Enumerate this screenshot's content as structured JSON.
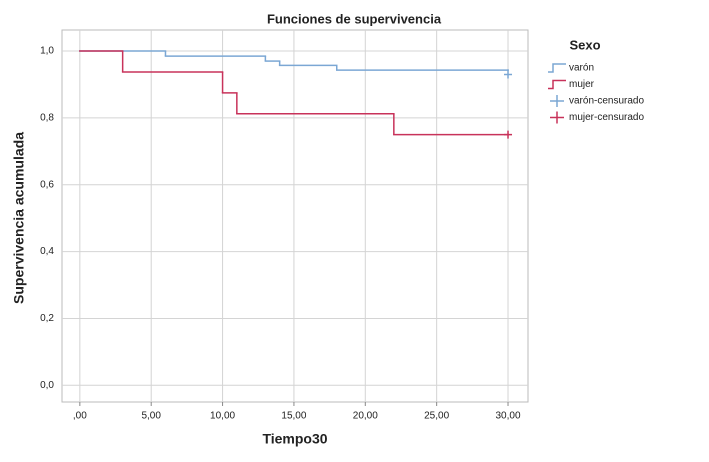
{
  "chart_data": {
    "type": "step",
    "title": "Funciones de supervivencia",
    "x_label": "Tiempo30",
    "y_label": "Supervivencia acumulada",
    "legend_title": "Sexo",
    "legend": "right",
    "grid": true,
    "xlim": [
      -1.25,
      31.4
    ],
    "ylim": [
      -0.05,
      1.063
    ],
    "xticks": [
      {
        "value": 0,
        "label": ",00"
      },
      {
        "value": 5,
        "label": "5,00"
      },
      {
        "value": 10,
        "label": "10,00"
      },
      {
        "value": 15,
        "label": "15,00"
      },
      {
        "value": 20,
        "label": "20,00"
      },
      {
        "value": 25,
        "label": "25,00"
      },
      {
        "value": 30,
        "label": "30,00"
      }
    ],
    "yticks": [
      {
        "value": 0,
        "label": "0,0"
      },
      {
        "value": 0.2,
        "label": "0,2"
      },
      {
        "value": 0.4,
        "label": "0,4"
      },
      {
        "value": 0.6,
        "label": "0,6"
      },
      {
        "value": 0.8,
        "label": "0,8"
      },
      {
        "value": 1,
        "label": "1,0"
      }
    ],
    "series": [
      {
        "name": "varón",
        "color": "#7ba7d4",
        "marker": "step",
        "x": [
          0,
          6,
          13,
          14,
          18,
          30
        ],
        "values": [
          1,
          0.985,
          0.97,
          0.957,
          0.943,
          0.943
        ]
      },
      {
        "name": "mujer",
        "color": "#c8325a",
        "marker": "step",
        "x": [
          0,
          3,
          10,
          11,
          22,
          30
        ],
        "values": [
          1,
          0.9375,
          0.875,
          0.8125,
          0.75,
          0.75
        ]
      },
      {
        "name": "varón-censurado",
        "color": "#7ba7d4",
        "marker": "plus",
        "x": [
          30
        ],
        "values": [
          0.93
        ]
      },
      {
        "name": "mujer-censurado",
        "color": "#c8325a",
        "marker": "plus",
        "x": [
          30
        ],
        "values": [
          0.75
        ]
      }
    ]
  }
}
